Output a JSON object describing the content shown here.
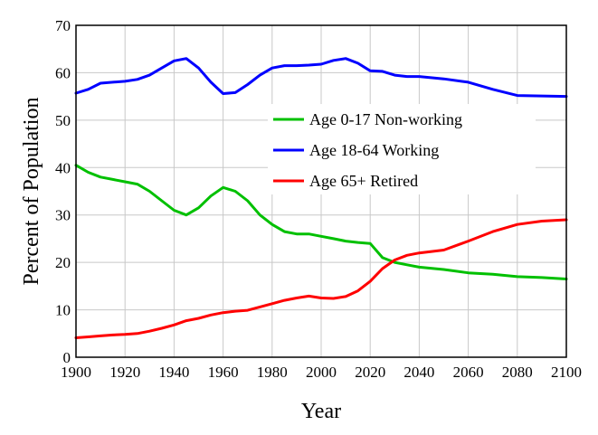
{
  "chart_data": {
    "type": "line",
    "title": "",
    "xlabel": "Year",
    "ylabel": "Percent of Population",
    "xlim": [
      1900,
      2100
    ],
    "ylim": [
      0,
      70
    ],
    "xticks": [
      1900,
      1920,
      1940,
      1960,
      1980,
      2000,
      2020,
      2040,
      2060,
      2080,
      2100
    ],
    "yticks": [
      0,
      10,
      20,
      30,
      40,
      50,
      60,
      70
    ],
    "grid": true,
    "legend_position": "center-right",
    "series": [
      {
        "name": "Age 0-17 Non-working",
        "color": "#00c000",
        "x": [
          1900,
          1905,
          1910,
          1915,
          1920,
          1925,
          1930,
          1935,
          1940,
          1945,
          1950,
          1955,
          1960,
          1965,
          1970,
          1975,
          1980,
          1985,
          1990,
          1995,
          2000,
          2005,
          2010,
          2015,
          2020,
          2025,
          2030,
          2035,
          2040,
          2050,
          2060,
          2070,
          2080,
          2090,
          2100
        ],
        "y": [
          40.5,
          39,
          38,
          37.5,
          37,
          36.5,
          35,
          33,
          31,
          30,
          31.5,
          34,
          35.8,
          35,
          33,
          30,
          28,
          26.5,
          26,
          26,
          25.5,
          25,
          24.5,
          24.2,
          24,
          21,
          20,
          19.5,
          19,
          18.5,
          17.8,
          17.5,
          17,
          16.8,
          16.5
        ]
      },
      {
        "name": "Age 18-64 Working",
        "color": "#0000ff",
        "x": [
          1900,
          1905,
          1910,
          1915,
          1920,
          1925,
          1930,
          1935,
          1940,
          1945,
          1950,
          1955,
          1960,
          1965,
          1970,
          1975,
          1980,
          1985,
          1990,
          1995,
          2000,
          2005,
          2010,
          2015,
          2020,
          2025,
          2030,
          2035,
          2040,
          2050,
          2060,
          2070,
          2080,
          2090,
          2100
        ],
        "y": [
          55.7,
          56.5,
          57.8,
          58,
          58.2,
          58.6,
          59.5,
          61,
          62.5,
          63,
          61,
          58,
          55.6,
          55.8,
          57.5,
          59.5,
          61,
          61.5,
          61.5,
          61.6,
          61.8,
          62.6,
          63,
          62,
          60.4,
          60.3,
          59.5,
          59.2,
          59.2,
          58.7,
          58,
          56.5,
          55.2,
          55.1,
          55
        ]
      },
      {
        "name": "Age 65+ Retired",
        "color": "#ff0000",
        "x": [
          1900,
          1905,
          1910,
          1915,
          1920,
          1925,
          1930,
          1935,
          1940,
          1945,
          1950,
          1955,
          1960,
          1965,
          1970,
          1975,
          1980,
          1985,
          1990,
          1995,
          2000,
          2005,
          2010,
          2015,
          2020,
          2025,
          2030,
          2035,
          2040,
          2050,
          2060,
          2070,
          2080,
          2090,
          2100
        ],
        "y": [
          4.1,
          4.3,
          4.5,
          4.7,
          4.8,
          5,
          5.5,
          6.1,
          6.8,
          7.7,
          8.2,
          8.9,
          9.4,
          9.7,
          9.9,
          10.6,
          11.3,
          12,
          12.5,
          12.9,
          12.5,
          12.4,
          12.8,
          14,
          16,
          18.7,
          20.5,
          21.5,
          22,
          22.6,
          24.5,
          26.5,
          28,
          28.7,
          29
        ]
      }
    ]
  }
}
